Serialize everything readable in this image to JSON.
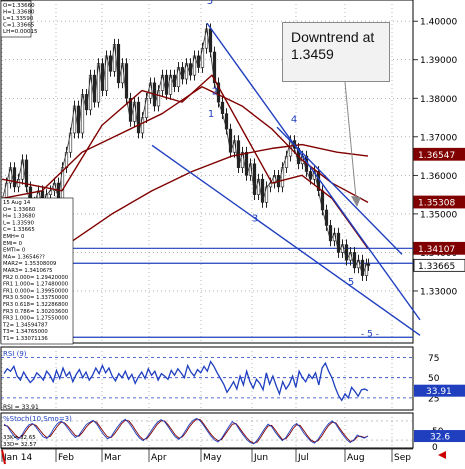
{
  "chart_data": {
    "type": "candlestick",
    "x_ticks": [
      "Jan 14",
      "Feb",
      "Mar",
      "Apr",
      "May",
      "Jun",
      "Jul",
      "Aug",
      "Sep"
    ],
    "price_panel": {
      "ylim": [
        1.3165,
        1.4055
      ],
      "y_ticks": [
        "1.40000",
        "1.39000",
        "1.38000",
        "1.37000",
        "1.36000",
        "1.35000",
        "1.34000",
        "1.33000"
      ],
      "price_badges": [
        {
          "label": "1.36547",
          "value": 1.36547,
          "color": "#800000"
        },
        {
          "label": "1.35308",
          "value": 1.35308,
          "color": "#800000"
        },
        {
          "label": "1.34107",
          "value": 1.34107,
          "color": "#800000"
        },
        {
          "label": "1.33665",
          "value": 1.33665,
          "color": "#ffffff",
          "text_color": "#000000"
        }
      ],
      "close_path": [
        [
          0,
          1.354
        ],
        [
          4,
          1.358
        ],
        [
          8,
          1.362
        ],
        [
          12,
          1.357
        ],
        [
          16,
          1.359
        ],
        [
          20,
          1.364
        ],
        [
          24,
          1.357
        ],
        [
          28,
          1.352
        ],
        [
          32,
          1.353
        ],
        [
          36,
          1.356
        ],
        [
          40,
          1.352
        ],
        [
          44,
          1.355
        ],
        [
          48,
          1.356
        ],
        [
          52,
          1.358
        ],
        [
          56,
          1.354
        ],
        [
          60,
          1.362
        ],
        [
          64,
          1.366
        ],
        [
          68,
          1.371
        ],
        [
          72,
          1.378
        ],
        [
          76,
          1.371
        ],
        [
          80,
          1.381
        ],
        [
          84,
          1.377
        ],
        [
          88,
          1.386
        ],
        [
          92,
          1.379
        ],
        [
          96,
          1.389
        ],
        [
          100,
          1.382
        ],
        [
          104,
          1.391
        ],
        [
          108,
          1.387
        ],
        [
          112,
          1.394
        ],
        [
          116,
          1.384
        ],
        [
          120,
          1.389
        ],
        [
          124,
          1.38
        ],
        [
          128,
          1.374
        ],
        [
          132,
          1.379
        ],
        [
          136,
          1.371
        ],
        [
          140,
          1.375
        ],
        [
          144,
          1.38
        ],
        [
          148,
          1.384
        ],
        [
          152,
          1.378
        ],
        [
          156,
          1.382
        ],
        [
          160,
          1.386
        ],
        [
          164,
          1.381
        ],
        [
          168,
          1.386
        ],
        [
          172,
          1.383
        ],
        [
          176,
          1.388
        ],
        [
          180,
          1.385
        ],
        [
          184,
          1.389
        ],
        [
          188,
          1.386
        ],
        [
          192,
          1.391
        ],
        [
          196,
          1.388
        ],
        [
          200,
          1.393
        ],
        [
          204,
          1.398
        ],
        [
          208,
          1.392
        ],
        [
          212,
          1.384
        ],
        [
          216,
          1.379
        ],
        [
          220,
          1.376
        ],
        [
          224,
          1.372
        ],
        [
          228,
          1.366
        ],
        [
          232,
          1.369
        ],
        [
          236,
          1.362
        ],
        [
          240,
          1.366
        ],
        [
          244,
          1.36
        ],
        [
          248,
          1.363
        ],
        [
          252,
          1.355
        ],
        [
          256,
          1.359
        ],
        [
          260,
          1.353
        ],
        [
          264,
          1.357
        ],
        [
          268,
          1.358
        ],
        [
          272,
          1.36
        ],
        [
          276,
          1.357
        ],
        [
          280,
          1.362
        ],
        [
          284,
          1.365
        ],
        [
          288,
          1.369
        ],
        [
          292,
          1.367
        ],
        [
          296,
          1.363
        ],
        [
          300,
          1.365
        ],
        [
          304,
          1.361
        ],
        [
          308,
          1.359
        ],
        [
          312,
          1.361
        ],
        [
          316,
          1.356
        ],
        [
          320,
          1.351
        ],
        [
          324,
          1.347
        ],
        [
          328,
          1.343
        ],
        [
          332,
          1.345
        ],
        [
          336,
          1.34
        ],
        [
          340,
          1.342
        ],
        [
          344,
          1.338
        ],
        [
          348,
          1.34
        ],
        [
          352,
          1.336
        ],
        [
          356,
          1.338
        ],
        [
          360,
          1.334
        ],
        [
          364,
          1.337
        ],
        [
          366,
          1.3366
        ]
      ],
      "averages": [
        {
          "name": "MA1",
          "color": "#800000",
          "path": [
            [
              0,
              1.359
            ],
            [
              60,
              1.356
            ],
            [
              100,
              1.373
            ],
            [
              140,
              1.382
            ],
            [
              180,
              1.379
            ],
            [
              210,
              1.386
            ],
            [
              240,
              1.372
            ],
            [
              270,
              1.358
            ],
            [
              300,
              1.36
            ],
            [
              330,
              1.354
            ],
            [
              366,
              1.341
            ]
          ]
        },
        {
          "name": "MA2",
          "color": "#800000",
          "path": [
            [
              0,
              1.354
            ],
            [
              40,
              1.356
            ],
            [
              80,
              1.366
            ],
            [
              120,
              1.371
            ],
            [
              160,
              1.376
            ],
            [
              200,
              1.383
            ],
            [
              240,
              1.378
            ],
            [
              270,
              1.372
            ],
            [
              300,
              1.364
            ],
            [
              330,
              1.358
            ],
            [
              366,
              1.353
            ]
          ]
        },
        {
          "name": "MA3",
          "color": "#800000",
          "path": [
            [
              65,
              1.342
            ],
            [
              110,
              1.35
            ],
            [
              150,
              1.356
            ],
            [
              190,
              1.361
            ],
            [
              230,
              1.365
            ],
            [
              270,
              1.367
            ],
            [
              300,
              1.368
            ],
            [
              335,
              1.366
            ],
            [
              366,
              1.365
            ]
          ]
        }
      ],
      "trend_lines": [
        {
          "name": "downtrend",
          "from": [
            205,
            1.3995
          ],
          "to": [
            418,
            1.3225
          ]
        },
        {
          "name": "lower-channel",
          "from": [
            150,
            1.3678
          ],
          "to": [
            418,
            1.3185
          ]
        },
        {
          "name": "parallel-upper",
          "from": [
            275,
            1.3725
          ],
          "to": [
            400,
            1.3395
          ]
        }
      ],
      "horizontals": [
        {
          "name": "support-1",
          "value": 1.34107
        },
        {
          "name": "support-2",
          "value": 1.3372
        },
        {
          "name": "projection-5",
          "value": 1.318
        }
      ],
      "wave_labels": [
        {
          "label": "5",
          "at": [
            208,
            1.4045
          ],
          "size": 10
        },
        {
          "label": "2",
          "at": [
            213,
            1.381
          ],
          "size": 10
        },
        {
          "label": "1",
          "at": [
            209,
            1.3752
          ],
          "size": 10
        },
        {
          "label": "4",
          "at": [
            292,
            1.3737
          ],
          "size": 10
        },
        {
          "label": "3",
          "at": [
            253,
            1.348
          ],
          "size": 10
        },
        {
          "label": "5",
          "at": [
            349,
            1.3315
          ],
          "size": 10
        },
        {
          "label": "- 5 -",
          "at": [
            368,
            1.3182
          ],
          "size": 9
        }
      ]
    },
    "info_box_1": [
      "O=1.33660",
      "H=1.33680",
      "L=1.33590",
      "C=1.33665",
      "LH=0.00015"
    ],
    "info_box_2": [
      "15 Aug 14",
      "O=               1.33660",
      "H=               1.33680",
      "L=               1.33590",
      "C=               1.33665",
      "EMH=                   0",
      "EMI=                   0",
      "EMTI=                  0",
      "MA=        1.36546??",
      "MAR2=        1.35308009",
      "MAR3=        1.34106?5",
      "FR2  0.000=  1.29420000",
      "FR1  1.000=  1.27480000",
      "FR1  0.000=  1.39950000",
      "FR3  0.500=  1.33750000",
      "FR3  0.618=  1.32286800",
      "FR3  0.786=  1.30203600",
      "FR3  1.000=  1.27550000",
      "T2=          1.34594787",
      "T3=          1.34765000",
      "T1=          1.33071136"
    ],
    "rsi_panel": {
      "label": "RSI (9)",
      "last_label": "RSI =  33.91",
      "ylim": [
        10,
        88
      ],
      "y_ticks": [
        "75",
        "50",
        "25"
      ],
      "guides": [
        75,
        50,
        25
      ],
      "badge": {
        "label": "33.91",
        "value": 33.91
      },
      "values": [
        55,
        61,
        58,
        64,
        52,
        47,
        57,
        50,
        44,
        48,
        56,
        52,
        47,
        58,
        53,
        45,
        59,
        49,
        62,
        52,
        57,
        45,
        54,
        60,
        50,
        57,
        47,
        53,
        62,
        55,
        65,
        56,
        62,
        52,
        46,
        55,
        50,
        58,
        48,
        54,
        43,
        51,
        57,
        49,
        61,
        53,
        58,
        47,
        55,
        52,
        48,
        59,
        53,
        61,
        56,
        50,
        65,
        57,
        52,
        60,
        56,
        64,
        58,
        70,
        64,
        56,
        49,
        42,
        32,
        38,
        45,
        36,
        52,
        41,
        58,
        45,
        37,
        48,
        43,
        35,
        56,
        42,
        52,
        40,
        30,
        45,
        36,
        42,
        52,
        38,
        58,
        50,
        45,
        54,
        49,
        56,
        41,
        62,
        68,
        58,
        50,
        38,
        28,
        22,
        30,
        25,
        38,
        33,
        27,
        35,
        36,
        33.91
      ]
    },
    "stoch_panel": {
      "label": "%Stoch(10,Smo=3)",
      "line_labels": [
        "33K= 32.65",
        "33D= 32.57"
      ],
      "ylim": [
        -5,
        105
      ],
      "y_ticks": [
        "50",
        "0"
      ],
      "badge": {
        "label": "32.6",
        "value": 32.6
      },
      "k": [
        70,
        62,
        45,
        30,
        22,
        35,
        55,
        68,
        72,
        60,
        44,
        30,
        25,
        38,
        58,
        72,
        80,
        70,
        55,
        40,
        28,
        35,
        52,
        68,
        76,
        82,
        70,
        52,
        36,
        24,
        30,
        48,
        64,
        78,
        85,
        74,
        58,
        40,
        26,
        18,
        28,
        45,
        62,
        76,
        84,
        78,
        62,
        45,
        30,
        22,
        34,
        52,
        70,
        82,
        88,
        80,
        65,
        48,
        32,
        20,
        14,
        26,
        44,
        62,
        78,
        70,
        52,
        36,
        22,
        12,
        8,
        20,
        38,
        55,
        70,
        62,
        45,
        30,
        18,
        28,
        46,
        64,
        72,
        60,
        42,
        28,
        16,
        10,
        22,
        40,
        58,
        72,
        80,
        70,
        52,
        36,
        22,
        12,
        20,
        36,
        30,
        26,
        32.65
      ],
      "d": [
        66,
        64,
        52,
        38,
        28,
        30,
        46,
        62,
        70,
        66,
        52,
        38,
        28,
        32,
        48,
        64,
        76,
        74,
        62,
        48,
        34,
        32,
        44,
        60,
        72,
        80,
        76,
        60,
        44,
        30,
        28,
        40,
        56,
        72,
        82,
        80,
        66,
        48,
        32,
        22,
        24,
        38,
        54,
        70,
        80,
        80,
        68,
        52,
        36,
        26,
        30,
        44,
        62,
        76,
        86,
        84,
        70,
        54,
        38,
        26,
        18,
        22,
        38,
        54,
        70,
        72,
        58,
        42,
        28,
        16,
        10,
        14,
        30,
        48,
        64,
        66,
        52,
        36,
        22,
        24,
        38,
        56,
        68,
        66,
        50,
        34,
        20,
        14,
        18,
        32,
        50,
        66,
        76,
        74,
        58,
        42,
        28,
        16,
        18,
        30,
        32,
        28,
        32.57
      ]
    },
    "markers": [
      {
        "name": "red-arrow",
        "note": "bottom-right up arrow"
      },
      {
        "name": "red-line-end",
        "note": "bottom-left small red bar"
      }
    ]
  },
  "callout": {
    "text": "Downtrend at 1.3459"
  }
}
